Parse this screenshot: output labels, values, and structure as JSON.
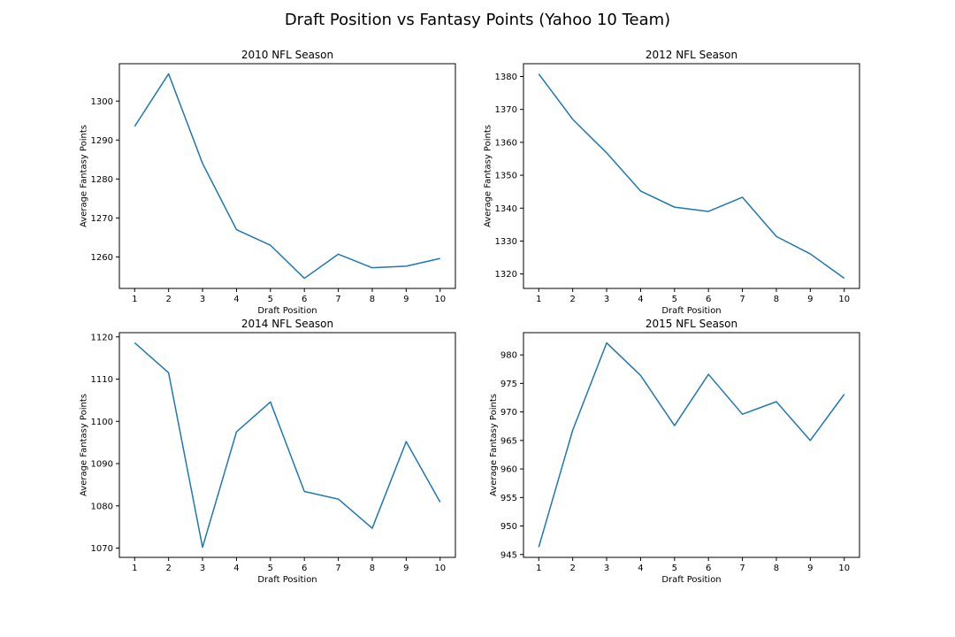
{
  "figure": {
    "title": "Draft Position vs Fantasy Points (Yahoo 10 Team)",
    "line_color": "#1f77b4"
  },
  "chart_data": [
    {
      "type": "line",
      "title": "2010 NFL Season",
      "xlabel": "Draft Position",
      "ylabel": "Average Fantasy Points",
      "x": [
        1,
        2,
        3,
        4,
        5,
        6,
        7,
        8,
        9,
        10
      ],
      "series": [
        {
          "values": [
            1293.5,
            1307.0,
            1284.0,
            1267.0,
            1263.0,
            1254.5,
            1260.7,
            1257.2,
            1257.6,
            1259.6
          ]
        }
      ],
      "xticks": [
        1,
        2,
        3,
        4,
        5,
        6,
        7,
        8,
        9,
        10
      ],
      "yticks": [
        1260,
        1270,
        1280,
        1290,
        1300
      ],
      "xlim": [
        0.55,
        10.45
      ],
      "ylim": [
        1251.9,
        1309.6
      ],
      "grid": false
    },
    {
      "type": "line",
      "title": "2012 NFL Season",
      "xlabel": "Draft Position",
      "ylabel": "Average Fantasy Points",
      "x": [
        1,
        2,
        3,
        4,
        5,
        6,
        7,
        8,
        9,
        10
      ],
      "series": [
        {
          "values": [
            1380.8,
            1367.0,
            1356.8,
            1345.2,
            1340.3,
            1339.0,
            1343.3,
            1331.4,
            1326.1,
            1318.7
          ]
        }
      ],
      "xticks": [
        1,
        2,
        3,
        4,
        5,
        6,
        7,
        8,
        9,
        10
      ],
      "yticks": [
        1320,
        1330,
        1340,
        1350,
        1360,
        1370,
        1380
      ],
      "xlim": [
        0.55,
        10.45
      ],
      "ylim": [
        1315.6,
        1383.9
      ],
      "grid": false
    },
    {
      "type": "line",
      "title": "2014 NFL Season",
      "xlabel": "Draft Position",
      "ylabel": "Average Fantasy Points",
      "x": [
        1,
        2,
        3,
        4,
        5,
        6,
        7,
        8,
        9,
        10
      ],
      "series": [
        {
          "values": [
            1118.6,
            1111.5,
            1070.2,
            1097.5,
            1104.6,
            1083.4,
            1081.6,
            1074.7,
            1095.2,
            1080.9
          ]
        }
      ],
      "xticks": [
        1,
        2,
        3,
        4,
        5,
        6,
        7,
        8,
        9,
        10
      ],
      "yticks": [
        1070,
        1080,
        1090,
        1100,
        1110,
        1120
      ],
      "xlim": [
        0.55,
        10.45
      ],
      "ylim": [
        1067.8,
        1121.0
      ],
      "grid": false
    },
    {
      "type": "line",
      "title": "2015 NFL Season",
      "xlabel": "Draft Position",
      "ylabel": "Average Fantasy Points",
      "x": [
        1,
        2,
        3,
        4,
        5,
        6,
        7,
        8,
        9,
        10
      ],
      "series": [
        {
          "values": [
            946.3,
            966.8,
            982.1,
            976.4,
            967.6,
            976.6,
            969.6,
            971.8,
            965.0,
            973.1
          ]
        }
      ],
      "xticks": [
        1,
        2,
        3,
        4,
        5,
        6,
        7,
        8,
        9,
        10
      ],
      "yticks": [
        945,
        950,
        955,
        960,
        965,
        970,
        975,
        980
      ],
      "xlim": [
        0.55,
        10.45
      ],
      "ylim": [
        944.5,
        983.9
      ],
      "grid": false
    }
  ]
}
